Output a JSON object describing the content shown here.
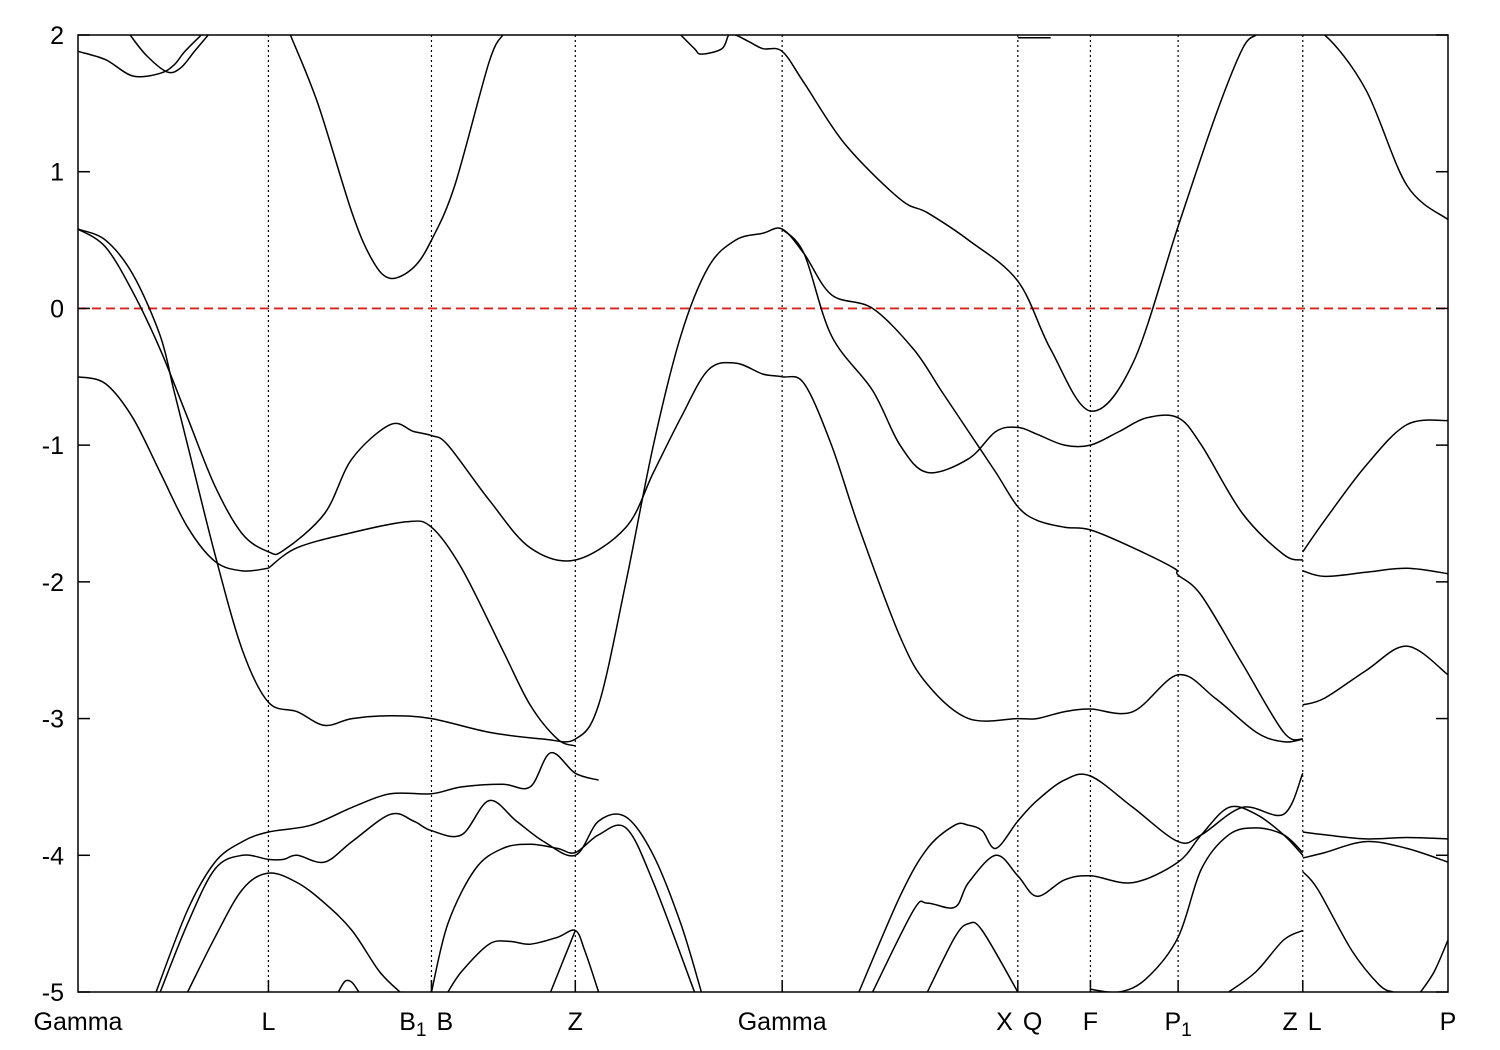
{
  "chart_data": {
    "type": "line",
    "title": "",
    "xlabel": "",
    "ylabel": "",
    "ylim": [
      -5,
      2
    ],
    "yticks": [
      "-5",
      "-4",
      "-3",
      "-2",
      "-1",
      "0",
      "1",
      "2"
    ],
    "xlim": [
      0,
      1.0
    ],
    "kpoints": [
      {
        "pos": 0.0,
        "label": "Gamma",
        "sub": ""
      },
      {
        "pos": 0.139,
        "label": "L",
        "sub": ""
      },
      {
        "pos": 0.258,
        "label": "B",
        "sub": "1"
      },
      {
        "pos": 0.258,
        "label": "B",
        "sub": ""
      },
      {
        "pos": 0.363,
        "label": "Z",
        "sub": ""
      },
      {
        "pos": 0.514,
        "label": "Gamma",
        "sub": ""
      },
      {
        "pos": 0.686,
        "label": "X",
        "sub": ""
      },
      {
        "pos": 0.686,
        "label": "Q",
        "sub": ""
      },
      {
        "pos": 0.739,
        "label": "F",
        "sub": ""
      },
      {
        "pos": 0.803,
        "label": "P",
        "sub": "1"
      },
      {
        "pos": 0.894,
        "label": "Z",
        "sub": ""
      },
      {
        "pos": 0.894,
        "label": "L",
        "sub": ""
      },
      {
        "pos": 1.0,
        "label": "P",
        "sub": ""
      }
    ],
    "fermi_level": 0,
    "colors": {
      "bands": "#000000",
      "fermi": "#e0201b",
      "kpoint_lines": "#000000"
    },
    "series": [
      {
        "x": [
          0,
          0.02,
          0.04,
          0.06,
          0.07,
          0.078,
          0.09
        ],
        "y": [
          1.88,
          1.82,
          1.7,
          1.72,
          1.78,
          1.88,
          2.0
        ]
      },
      {
        "x": [
          0.038,
          0.05,
          0.065,
          0.075,
          0.085,
          0.095
        ],
        "y": [
          2.0,
          1.85,
          1.73,
          1.76,
          1.88,
          2.0
        ]
      },
      {
        "x": [
          0.155,
          0.175,
          0.2,
          0.215,
          0.228,
          0.245,
          0.258,
          0.275,
          0.3,
          0.31
        ],
        "y": [
          2.0,
          1.5,
          0.7,
          0.35,
          0.22,
          0.3,
          0.5,
          0.9,
          1.8,
          2.0
        ]
      },
      {
        "x": [
          0.44,
          0.45,
          0.455,
          0.47,
          0.475,
          0.48,
          0.49,
          0.5,
          0.514,
          0.53,
          0.56,
          0.6,
          0.62,
          0.65,
          0.686,
          0.71,
          0.739,
          0.77,
          0.803,
          0.83,
          0.85,
          0.86
        ],
        "y": [
          2.0,
          1.9,
          1.86,
          1.9,
          2.0,
          2.0,
          1.95,
          1.9,
          1.88,
          1.65,
          1.2,
          0.8,
          0.7,
          0.5,
          0.2,
          -0.3,
          -0.75,
          -0.4,
          0.6,
          1.4,
          1.9,
          2.0
        ]
      },
      {
        "x": [
          0.894,
          0.91,
          0.94,
          0.97,
          1.0
        ],
        "y": [
          2.0,
          2.0,
          1.6,
          0.9,
          0.65
        ]
      },
      {
        "x": [
          0.686,
          0.7,
          0.71
        ],
        "y": [
          1.98,
          1.98,
          1.98
        ]
      },
      {
        "x": [
          0,
          0.02,
          0.04,
          0.06,
          0.08,
          0.1,
          0.12,
          0.139,
          0.15,
          0.18,
          0.2,
          0.228,
          0.245,
          0.258,
          0.27,
          0.3,
          0.33,
          0.363,
          0.4,
          0.42,
          0.44,
          0.46,
          0.48,
          0.5,
          0.514,
          0.53,
          0.55,
          0.57,
          0.6,
          0.62,
          0.65,
          0.686,
          0.7,
          0.72,
          0.739,
          0.77,
          0.803,
          0.83,
          0.86,
          0.88,
          0.894
        ],
        "y": [
          0.58,
          0.45,
          0.12,
          -0.3,
          -0.8,
          -1.3,
          -1.65,
          -1.78,
          -1.77,
          -1.5,
          -1.1,
          -0.85,
          -0.9,
          -0.93,
          -1.0,
          -1.4,
          -1.75,
          -1.84,
          -1.6,
          -1.2,
          -0.8,
          -0.45,
          -0.4,
          -0.48,
          -0.5,
          -0.55,
          -1.0,
          -1.6,
          -2.4,
          -2.75,
          -3.0,
          -3.0,
          -3.0,
          -2.95,
          -2.93,
          -2.95,
          -2.68,
          -2.85,
          -3.1,
          -3.17,
          -3.15
        ]
      },
      {
        "x": [
          0,
          0.02,
          0.04,
          0.06,
          0.08,
          0.1,
          0.12,
          0.139
        ],
        "y": [
          -0.5,
          -0.55,
          -0.8,
          -1.2,
          -1.6,
          -1.85,
          -1.92,
          -1.9
        ]
      },
      {
        "x": [
          0.139,
          0.16,
          0.2,
          0.24,
          0.258,
          0.28,
          0.31,
          0.33,
          0.35,
          0.363
        ],
        "y": [
          -1.9,
          -1.75,
          -1.64,
          -1.56,
          -1.6,
          -1.9,
          -2.5,
          -2.9,
          -3.15,
          -3.2
        ]
      },
      {
        "x": [
          0,
          0.02,
          0.04,
          0.06,
          0.07,
          0.08,
          0.1,
          0.12,
          0.139,
          0.16,
          0.18,
          0.2,
          0.228,
          0.258,
          0.3,
          0.34,
          0.363,
          0.38,
          0.4,
          0.42,
          0.44,
          0.46,
          0.48,
          0.5,
          0.514,
          0.53,
          0.55,
          0.58,
          0.61,
          0.63,
          0.65,
          0.67,
          0.686,
          0.7,
          0.72,
          0.739,
          0.77,
          0.8,
          0.803,
          0.82,
          0.85,
          0.88,
          0.894
        ],
        "y": [
          0.58,
          0.5,
          0.25,
          -0.2,
          -0.6,
          -1.0,
          -1.8,
          -2.5,
          -2.88,
          -2.95,
          -3.05,
          -3.0,
          -2.98,
          -3.0,
          -3.1,
          -3.15,
          -3.15,
          -2.9,
          -2.0,
          -1.0,
          -0.2,
          0.3,
          0.5,
          0.55,
          0.58,
          0.4,
          0.1,
          0.0,
          -0.3,
          -0.6,
          -0.9,
          -1.2,
          -1.45,
          -1.55,
          -1.6,
          -1.62,
          -1.75,
          -1.9,
          -1.95,
          -2.1,
          -2.6,
          -3.1,
          -3.15
        ]
      },
      {
        "x": [
          0.514,
          0.53,
          0.55,
          0.58,
          0.6,
          0.62,
          0.65,
          0.67,
          0.686,
          0.7,
          0.72,
          0.739,
          0.76,
          0.78,
          0.803,
          0.82,
          0.85,
          0.88,
          0.894
        ],
        "y": [
          0.58,
          0.4,
          -0.2,
          -0.6,
          -1.0,
          -1.2,
          -1.1,
          -0.9,
          -0.87,
          -0.92,
          -1.0,
          -1.0,
          -0.9,
          -0.8,
          -0.8,
          -1.0,
          -1.5,
          -1.8,
          -1.84
        ]
      },
      {
        "x": [
          0.894,
          0.91,
          0.94,
          0.97,
          1.0
        ],
        "y": [
          -1.78,
          -1.55,
          -1.15,
          -0.85,
          -0.82
        ]
      },
      {
        "x": [
          0.894,
          0.91,
          0.94,
          0.97,
          1.0
        ],
        "y": [
          -1.92,
          -1.96,
          -1.93,
          -1.9,
          -1.94
        ]
      },
      {
        "x": [
          0.894,
          0.91,
          0.94,
          0.97,
          1.0
        ],
        "y": [
          -2.9,
          -2.85,
          -2.65,
          -2.47,
          -2.68
        ]
      },
      {
        "x": [
          0.894,
          0.91,
          0.94,
          0.97,
          1.0
        ],
        "y": [
          -3.83,
          -3.85,
          -3.88,
          -3.87,
          -3.88
        ]
      },
      {
        "x": [
          0.894,
          0.91,
          0.94,
          0.97,
          1.0
        ],
        "y": [
          -4.02,
          -3.98,
          -3.9,
          -3.95,
          -4.05
        ]
      },
      {
        "x": [
          0.894,
          0.905,
          0.93,
          0.95,
          0.96
        ],
        "y": [
          -4.12,
          -4.25,
          -4.7,
          -4.95,
          -5.0
        ]
      },
      {
        "x": [
          0.98,
          0.99,
          1.0
        ],
        "y": [
          -5.0,
          -4.85,
          -4.62
        ]
      },
      {
        "x": [
          0.057,
          0.08,
          0.1,
          0.12,
          0.139,
          0.17,
          0.2,
          0.228,
          0.258,
          0.28,
          0.31,
          0.33,
          0.345,
          0.363,
          0.38
        ],
        "y": [
          -5.0,
          -4.4,
          -4.05,
          -3.9,
          -3.83,
          -3.78,
          -3.65,
          -3.55,
          -3.55,
          -3.5,
          -3.48,
          -3.5,
          -3.25,
          -3.4,
          -3.45
        ]
      },
      {
        "x": [
          0.06,
          0.08,
          0.1,
          0.12,
          0.139,
          0.15,
          0.16,
          0.18,
          0.2,
          0.228,
          0.245,
          0.258,
          0.28,
          0.3,
          0.32,
          0.34,
          0.363,
          0.38,
          0.4,
          0.42,
          0.44,
          0.455
        ],
        "y": [
          -5.0,
          -4.5,
          -4.1,
          -4.0,
          -4.03,
          -4.03,
          -4.0,
          -4.05,
          -3.9,
          -3.7,
          -3.75,
          -3.82,
          -3.85,
          -3.6,
          -3.75,
          -3.9,
          -4.0,
          -3.75,
          -3.72,
          -4.0,
          -4.5,
          -5.0
        ]
      },
      {
        "x": [
          0.08,
          0.1,
          0.12,
          0.139,
          0.16,
          0.18,
          0.2,
          0.22,
          0.235
        ],
        "y": [
          -5.0,
          -4.6,
          -4.25,
          -4.13,
          -4.2,
          -4.35,
          -4.55,
          -4.85,
          -5.0
        ]
      },
      {
        "x": [
          0.258,
          0.27,
          0.29,
          0.31,
          0.33,
          0.35,
          0.363,
          0.38,
          0.4,
          0.42,
          0.45
        ],
        "y": [
          -5.0,
          -4.5,
          -4.1,
          -3.95,
          -3.92,
          -3.95,
          -3.98,
          -3.85,
          -3.8,
          -4.2,
          -5.0
        ]
      },
      {
        "x": [
          0.27,
          0.28,
          0.3,
          0.315,
          0.33,
          0.35,
          0.363,
          0.37,
          0.38
        ],
        "y": [
          -5.0,
          -4.85,
          -4.65,
          -4.63,
          -4.65,
          -4.6,
          -4.55,
          -4.7,
          -5.0
        ]
      },
      {
        "x": [
          0.345,
          0.355,
          0.363
        ],
        "y": [
          -5.0,
          -4.75,
          -4.55
        ]
      },
      {
        "x": [
          0.19,
          0.195,
          0.2,
          0.205
        ],
        "y": [
          -5.0,
          -4.92,
          -4.93,
          -5.0
        ]
      },
      {
        "x": [
          0.57,
          0.6,
          0.62,
          0.64,
          0.65,
          0.66,
          0.67,
          0.686,
          0.7,
          0.72,
          0.739,
          0.77,
          0.803,
          0.82,
          0.85,
          0.88,
          0.894
        ],
        "y": [
          -5.0,
          -4.3,
          -3.95,
          -3.78,
          -3.78,
          -3.82,
          -3.95,
          -3.75,
          -3.6,
          -3.45,
          -3.42,
          -3.65,
          -3.9,
          -3.85,
          -3.65,
          -3.7,
          -3.4
        ]
      },
      {
        "x": [
          0.58,
          0.61,
          0.62,
          0.64,
          0.65,
          0.67,
          0.686,
          0.7,
          0.72,
          0.739,
          0.77,
          0.803,
          0.82,
          0.84,
          0.86,
          0.88,
          0.894
        ],
        "y": [
          -5.0,
          -4.4,
          -4.35,
          -4.38,
          -4.2,
          -4.0,
          -4.15,
          -4.3,
          -4.18,
          -4.15,
          -4.2,
          -4.05,
          -3.85,
          -3.65,
          -3.7,
          -3.85,
          -4.0
        ]
      },
      {
        "x": [
          0.62,
          0.64,
          0.65,
          0.66,
          0.686
        ],
        "y": [
          -5.0,
          -4.6,
          -4.5,
          -4.55,
          -5.0
        ]
      },
      {
        "x": [
          0.739,
          0.76,
          0.78,
          0.803,
          0.82,
          0.84,
          0.86,
          0.88,
          0.894
        ],
        "y": [
          -4.98,
          -5.0,
          -4.9,
          -4.6,
          -4.1,
          -3.85,
          -3.8,
          -3.85,
          -3.98
        ]
      },
      {
        "x": [
          0.84,
          0.86,
          0.88,
          0.894
        ],
        "y": [
          -5.0,
          -4.85,
          -4.62,
          -4.55
        ]
      }
    ]
  }
}
